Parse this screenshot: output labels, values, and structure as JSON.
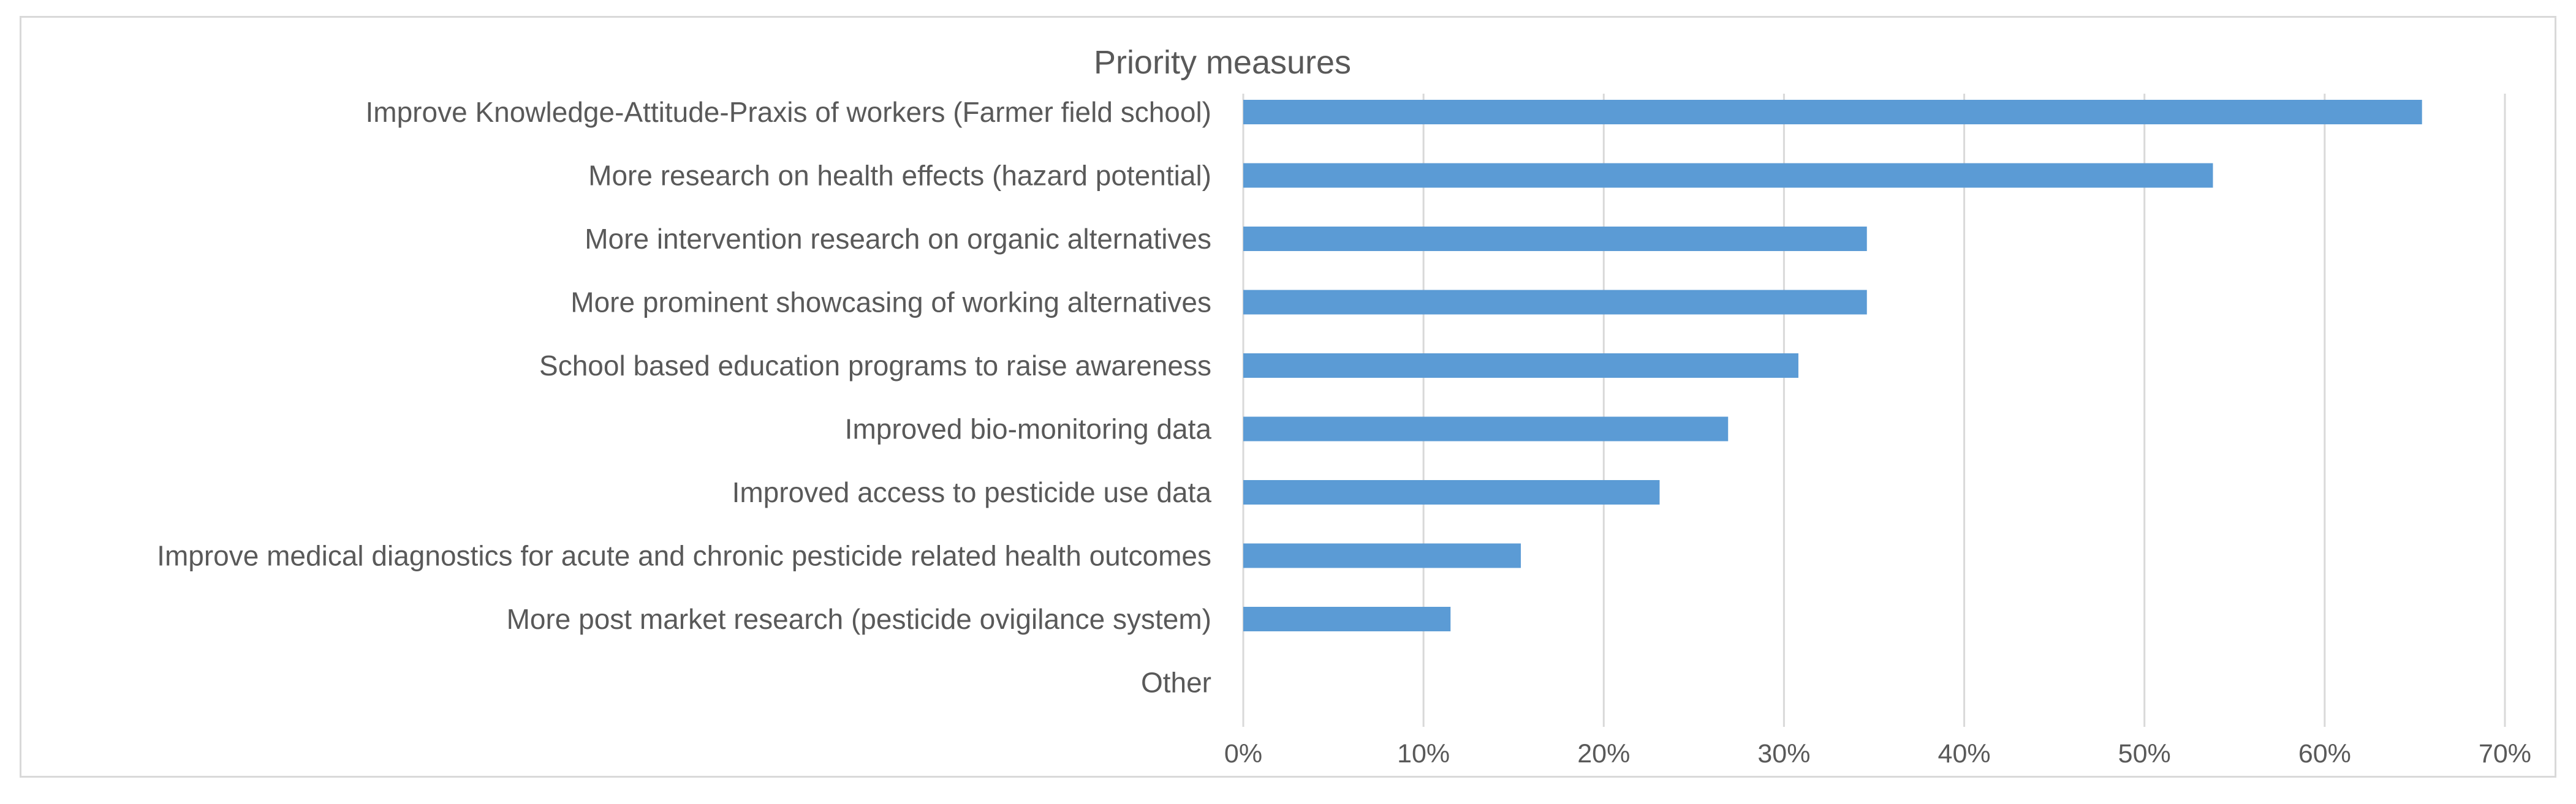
{
  "chart_data": {
    "type": "bar",
    "orientation": "horizontal",
    "title": "Priority measures",
    "categories": [
      "Improve Knowledge-Attitude-Praxis of workers (Farmer field school)",
      "More research on health effects (hazard potential)",
      "More intervention research on organic alternatives",
      "More prominent showcasing of working alternatives",
      "School based education programs to raise awareness",
      "Improved bio-monitoring data",
      "Improved access to pesticide use data",
      "Improve medical diagnostics for acute and chronic pesticide related health outcomes",
      "More post market research (pesticide ovigilance system)",
      "Other"
    ],
    "values": [
      65.4,
      53.8,
      34.6,
      34.6,
      30.8,
      26.9,
      23.1,
      15.4,
      11.5,
      0
    ],
    "xlim": [
      0,
      70
    ],
    "xticks": [
      0,
      10,
      20,
      30,
      40,
      50,
      60,
      70
    ],
    "xtick_labels": [
      "0%",
      "10%",
      "20%",
      "30%",
      "40%",
      "50%",
      "60%",
      "70%"
    ],
    "value_unit": "%",
    "grid": "vertical",
    "legend": "none",
    "bar_color": "#5b9bd5",
    "grid_color": "#d9d9d9"
  }
}
